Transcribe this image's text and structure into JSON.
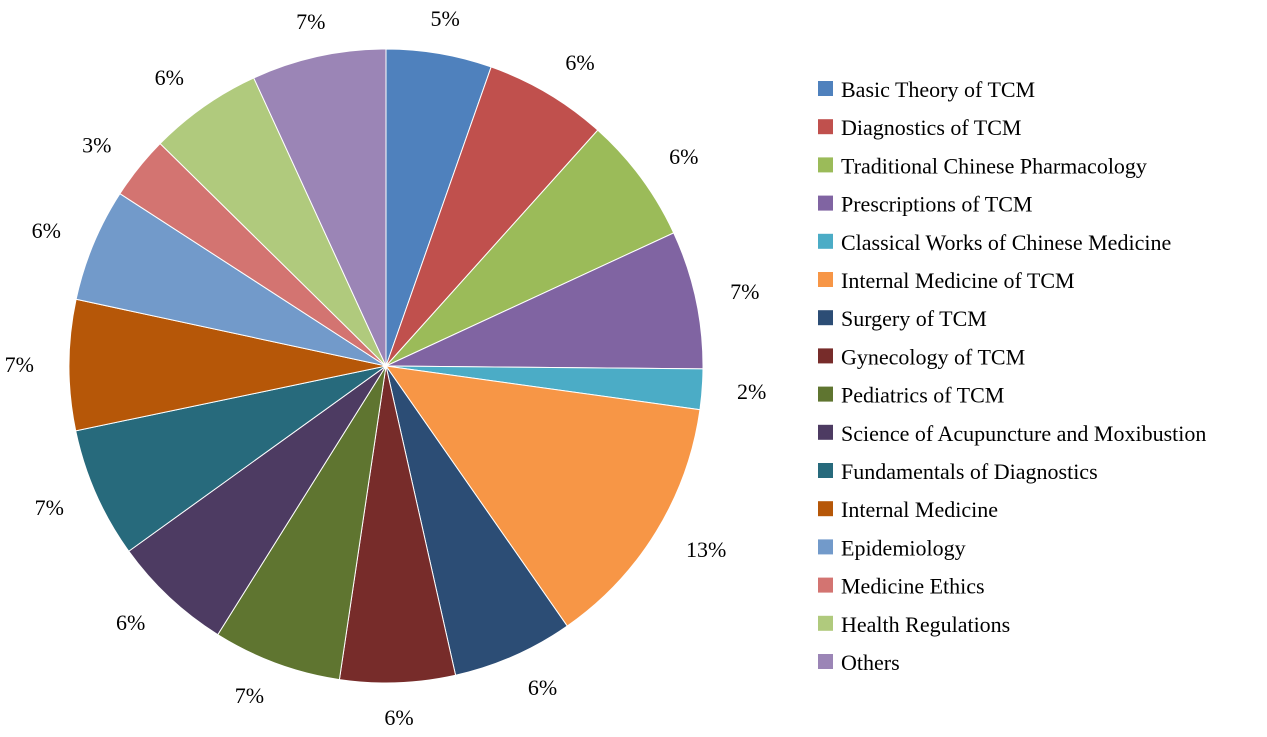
{
  "chart_data": {
    "type": "pie",
    "title": "",
    "start_angle_deg": 0,
    "direction": "clockwise",
    "legend_position": "right",
    "slices": [
      {
        "name": "Basic Theory of TCM",
        "value": 5.5,
        "label": "5%",
        "color": "#4f81bd"
      },
      {
        "name": "Diagnostics of TCM",
        "value": 6.4,
        "label": "6%",
        "color": "#c0504d"
      },
      {
        "name": "Traditional Chinese Pharmacology",
        "value": 6.6,
        "label": "6%",
        "color": "#9bbb59"
      },
      {
        "name": "Prescriptions of TCM",
        "value": 7.2,
        "label": "7%",
        "color": "#8064a2"
      },
      {
        "name": "Classical Works of Chinese Medicine",
        "value": 2.1,
        "label": "2%",
        "color": "#4bacc6"
      },
      {
        "name": "Internal Medicine of TCM",
        "value": 13.4,
        "label": "13%",
        "color": "#f79646"
      },
      {
        "name": "Surgery of TCM",
        "value": 6.3,
        "label": "6%",
        "color": "#2c4d75"
      },
      {
        "name": "Gynecology of TCM",
        "value": 6.0,
        "label": "6%",
        "color": "#772c2a"
      },
      {
        "name": "Pediatrics of TCM",
        "value": 6.7,
        "label": "7%",
        "color": "#5f7530"
      },
      {
        "name": "Science of Acupuncture and Moxibustion",
        "value": 6.3,
        "label": "6%",
        "color": "#4d3b62"
      },
      {
        "name": "Fundamentals of Diagnostics",
        "value": 6.8,
        "label": "7%",
        "color": "#276a7c"
      },
      {
        "name": "Internal Medicine",
        "value": 6.8,
        "label": "7%",
        "color": "#b65708"
      },
      {
        "name": "Epidemiology",
        "value": 5.9,
        "label": "6%",
        "color": "#729aca"
      },
      {
        "name": "Medicine Ethics",
        "value": 3.3,
        "label": "3%",
        "color": "#d37471"
      },
      {
        "name": "Health Regulations",
        "value": 5.9,
        "label": "6%",
        "color": "#b0ca7d"
      },
      {
        "name": "Others",
        "value": 7.0,
        "label": "7%",
        "color": "#9b85b6"
      }
    ]
  }
}
